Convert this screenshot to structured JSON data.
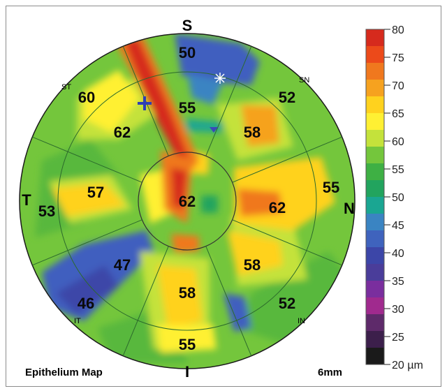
{
  "map": {
    "title": "Epithelium Map",
    "scan_size": "6mm",
    "orientation": {
      "superior": "S",
      "inferior": "I",
      "temporal": "T",
      "nasal": "N"
    },
    "sector_labels": {
      "superotemporal": "ST",
      "superonasal": "SN",
      "inferotemporal": "IT",
      "inferonasal": "IN"
    },
    "values": {
      "central": "62",
      "inner_superior": "55",
      "inner_superonasal": "58",
      "inner_nasal": "62",
      "inner_inferonasal": "58",
      "inner_inferior": "58",
      "inner_inferotemporal": "47",
      "inner_temporal": "57",
      "inner_superotemporal": "62",
      "outer_superior": "50",
      "outer_superonasal": "52",
      "outer_nasal": "55",
      "outer_inferonasal": "52",
      "outer_inferior": "55",
      "outer_inferotemporal": "46",
      "outer_temporal": "53",
      "outer_superotemporal": "60"
    }
  },
  "scale": {
    "unit": "µm",
    "min": 20,
    "max": 80,
    "ticks": [
      "80",
      "75",
      "70",
      "65",
      "60",
      "55",
      "50",
      "45",
      "40",
      "35",
      "30",
      "25",
      "20 µm"
    ],
    "colors": [
      "#d62a1d",
      "#ec4a1a",
      "#f0781e",
      "#f6a21f",
      "#ffd21e",
      "#fff033",
      "#c4e23b",
      "#74c63c",
      "#3eb044",
      "#22a45e",
      "#1aa692",
      "#3a84c2",
      "#3f63bd",
      "#3c46a8",
      "#4a3d9a",
      "#7a2e9e",
      "#a02a8e",
      "#5e2a6a",
      "#3c1f4b",
      "#1a1a1a"
    ]
  }
}
